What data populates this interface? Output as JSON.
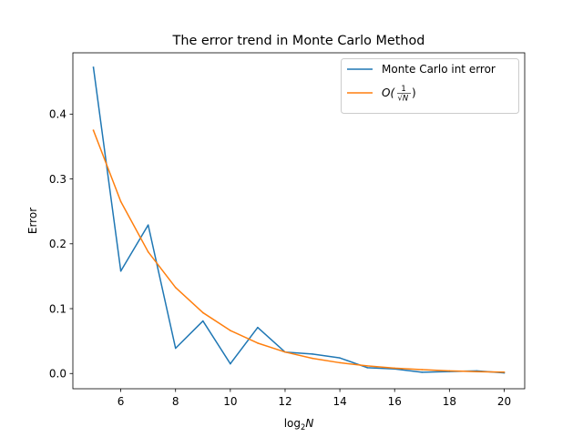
{
  "chart_data": {
    "type": "line",
    "title": "The error trend in Monte Carlo Method",
    "xlabel": {
      "prefix": "log",
      "subscript": "2",
      "variable": "N"
    },
    "ylabel": "Error",
    "xlim": [
      4.25,
      20.75
    ],
    "ylim": [
      -0.0235,
      0.4945
    ],
    "xticks": [
      6,
      8,
      10,
      12,
      14,
      16,
      18,
      20
    ],
    "xtick_labels": [
      "6",
      "8",
      "10",
      "12",
      "14",
      "16",
      "18",
      "20"
    ],
    "yticks": [
      0.0,
      0.1,
      0.2,
      0.3,
      0.4
    ],
    "ytick_labels": [
      "0.0",
      "0.1",
      "0.2",
      "0.3",
      "0.4"
    ],
    "grid": false,
    "legend_position": "top-right",
    "x": [
      5,
      6,
      7,
      8,
      9,
      10,
      11,
      12,
      13,
      14,
      15,
      16,
      17,
      18,
      19,
      20
    ],
    "series": [
      {
        "name": "Monte Carlo int error",
        "color": "#1f77b4",
        "values": [
          0.472,
          0.158,
          0.229,
          0.039,
          0.081,
          0.015,
          0.071,
          0.033,
          0.03,
          0.024,
          0.009,
          0.007,
          0.002,
          0.003,
          0.004,
          0.001
        ]
      },
      {
        "name": "O(1/√N)",
        "color": "#ff7f0e",
        "legend_label": {
          "big_o": "O(",
          "numerator": "1",
          "denominator_sqrt": "√",
          "denominator_var": "N",
          "close": ")"
        },
        "values": [
          0.375,
          0.2652,
          0.1875,
          0.1326,
          0.0938,
          0.0663,
          0.0469,
          0.0331,
          0.0234,
          0.0166,
          0.0117,
          0.0083,
          0.0059,
          0.0041,
          0.0029,
          0.0021
        ]
      }
    ]
  }
}
